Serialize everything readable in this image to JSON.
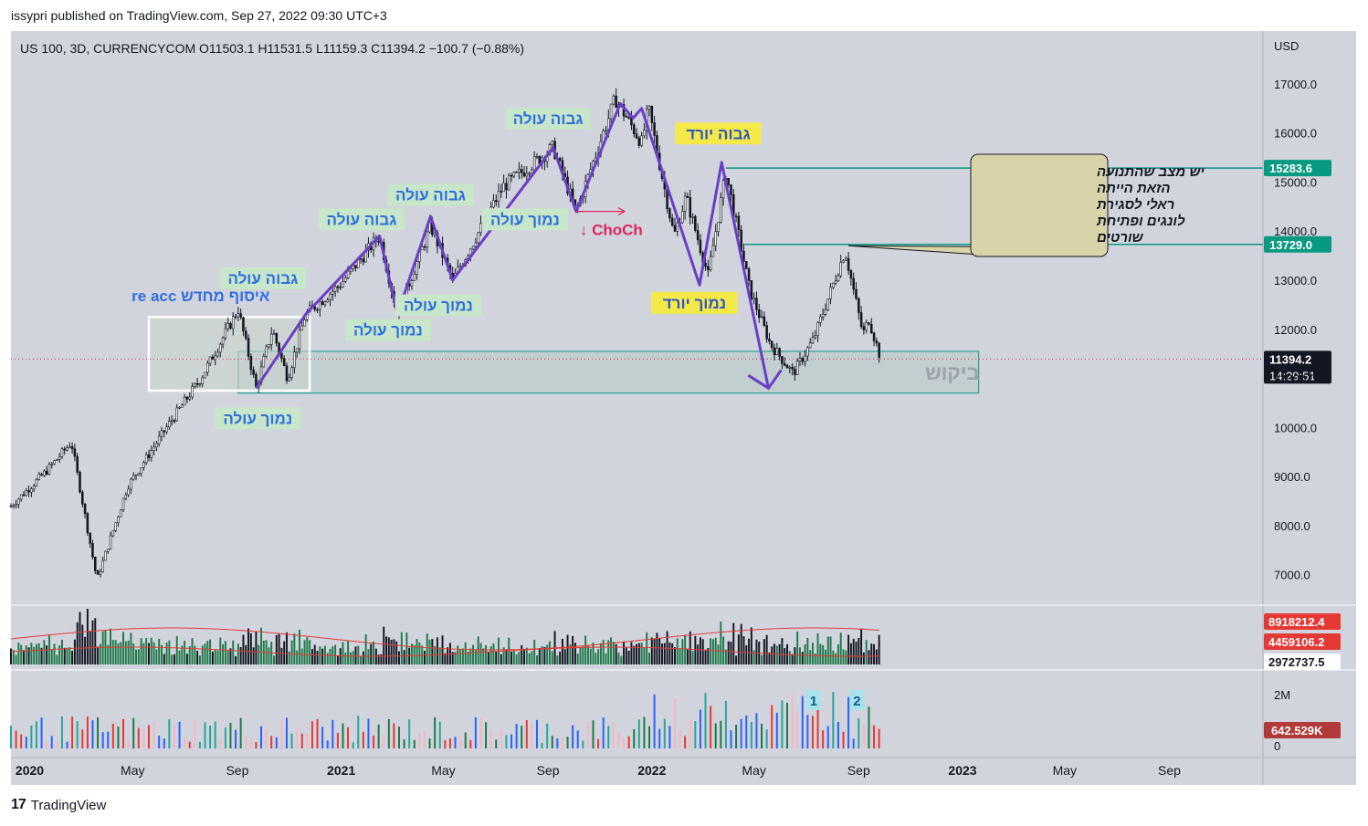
{
  "publisher": "issypri published on TradingView.com, Sep 27, 2022 09:30 UTC+3",
  "footer": {
    "logo": "17",
    "brand": "TradingView"
  },
  "colors": {
    "background": "#d1d4dc",
    "up": "#26a69a",
    "down": "#131722",
    "pattern": "#6a3fc4",
    "horizontal_level": "#089981",
    "choch": "#e0245e",
    "label_green_bg": "#c8e6c9",
    "label_yellow_bg": "#f5e94a",
    "demand_zone": "#b7c9c4"
  },
  "chart_data": [
    {
      "type": "candlestick",
      "title": "US 100, 3D, CURRENCYCOM",
      "ohlc": {
        "O": "O11503.1",
        "H": "H11531.5",
        "L": "L11159.3",
        "C": "C11394.2",
        "change": "−100.7 (−0.88%)"
      },
      "currency": "USD",
      "ylim": [
        6400,
        18000
      ],
      "y_ticks": [
        "17000.0",
        "16000.0",
        "15000.0",
        "14000.0",
        "13000.0",
        "12000.0",
        "11000.0",
        "10000.0",
        "9000.0",
        "8000.0",
        "7000.0"
      ],
      "x_ticks": [
        "2020",
        "May",
        "Sep",
        "2021",
        "May",
        "Sep",
        "2022",
        "May",
        "Sep",
        "2023",
        "May",
        "Sep"
      ],
      "xlim": [
        "2019-12-10",
        "2023-12-20"
      ],
      "swing_path": [
        {
          "date": "2019-12-10",
          "close": 8400
        },
        {
          "date": "2020-01-20",
          "close": 9100
        },
        {
          "date": "2020-02-19",
          "close": 9700
        },
        {
          "date": "2020-03-20",
          "close": 6900
        },
        {
          "date": "2020-04-25",
          "close": 8800
        },
        {
          "date": "2020-06-10",
          "close": 10000
        },
        {
          "date": "2020-07-20",
          "close": 11000
        },
        {
          "date": "2020-09-02",
          "close": 12400
        },
        {
          "date": "2020-09-23",
          "close": 10800
        },
        {
          "date": "2020-10-12",
          "close": 12000
        },
        {
          "date": "2020-10-30",
          "close": 11000
        },
        {
          "date": "2020-11-20",
          "close": 12300
        },
        {
          "date": "2020-12-30",
          "close": 12900
        },
        {
          "date": "2021-02-15",
          "close": 13900
        },
        {
          "date": "2021-03-08",
          "close": 12300
        },
        {
          "date": "2021-04-16",
          "close": 14100
        },
        {
          "date": "2021-05-12",
          "close": 13000
        },
        {
          "date": "2021-07-10",
          "close": 14900
        },
        {
          "date": "2021-09-07",
          "close": 15700
        },
        {
          "date": "2021-10-04",
          "close": 14400
        },
        {
          "date": "2021-11-19",
          "close": 16700
        },
        {
          "date": "2021-12-20",
          "close": 15800
        },
        {
          "date": "2021-12-28",
          "close": 16500
        },
        {
          "date": "2022-01-27",
          "close": 13900
        },
        {
          "date": "2022-02-10",
          "close": 14700
        },
        {
          "date": "2022-03-08",
          "close": 13100
        },
        {
          "date": "2022-03-29",
          "close": 15200
        },
        {
          "date": "2022-04-26",
          "close": 12800
        },
        {
          "date": "2022-05-20",
          "close": 11700
        },
        {
          "date": "2022-06-16",
          "close": 11100
        },
        {
          "date": "2022-07-10",
          "close": 11800
        },
        {
          "date": "2022-08-16",
          "close": 13600
        },
        {
          "date": "2022-09-06",
          "close": 11900
        },
        {
          "date": "2022-09-13",
          "close": 12200
        },
        {
          "date": "2022-09-27",
          "close": 11394
        }
      ],
      "price_badges": [
        {
          "value": "15283.6",
          "y": 15283.6
        },
        {
          "value": "13729.0",
          "y": 13729.0
        },
        {
          "value": "11394.2",
          "sub": "14:29:51",
          "y": 11394.2
        }
      ],
      "levels": [
        {
          "y": 15283.6,
          "from": "2022-03-29"
        },
        {
          "y": 13729.0,
          "from": "2022-04-20"
        }
      ],
      "choch": {
        "label": "↓ ChoCh",
        "y": 14400,
        "from": "2021-10-04",
        "to": "2021-11-30"
      },
      "annotations": [
        {
          "text": "גבוה עולה",
          "date": "2020-10-01",
          "y": 13000,
          "style": "green"
        },
        {
          "text": "איסוף מחדש re acc",
          "date": "2020-07-20",
          "y": 12650,
          "style": "plain"
        },
        {
          "text": "נמוך עולה",
          "date": "2020-09-25",
          "y": 10150,
          "style": "green"
        },
        {
          "text": "גבוה עולה",
          "date": "2021-01-25",
          "y": 14200,
          "style": "green"
        },
        {
          "text": "נמוך עולה",
          "date": "2021-02-25",
          "y": 11950,
          "style": "green"
        },
        {
          "text": "גבוה עולה",
          "date": "2021-04-16",
          "y": 14700,
          "style": "green"
        },
        {
          "text": "נמוך עולה",
          "date": "2021-04-25",
          "y": 12450,
          "style": "green"
        },
        {
          "text": "נמוך עולה",
          "date": "2021-08-05",
          "y": 14200,
          "style": "green"
        },
        {
          "text": "גבוה עולה",
          "date": "2021-09-01",
          "y": 16250,
          "style": "green"
        },
        {
          "text": "גבוה יורד",
          "date": "2022-03-20",
          "y": 15950,
          "style": "yellow"
        },
        {
          "text": "נמוך יורד",
          "date": "2022-02-20",
          "y": 12500,
          "style": "yellow"
        },
        {
          "text": "ביקוש",
          "date": "2022-12-20",
          "y": 11100,
          "style": "zone"
        }
      ],
      "note_box": {
        "lines": [
          "יש מצב שהתנועה",
          "הזאת הייתה",
          "ראלי לסגירת",
          "לונגים ופתיחת",
          "שורטים"
        ]
      },
      "demand_zone": {
        "from": "2020-09-02",
        "to": "2023-01-20",
        "y_low": 10700,
        "y_high": 11550
      },
      "accumulation_box": {
        "from": "2020-05-20",
        "to": "2020-11-25",
        "y_low": 10750,
        "y_high": 12250
      }
    },
    {
      "type": "bar",
      "title": "volume",
      "badges": [
        "8918212.4",
        "4459106.2",
        "2972737.5"
      ]
    },
    {
      "type": "bar",
      "title": "histogram",
      "y_ticks": [
        "2M",
        "0"
      ],
      "badge": "642.529K",
      "markers": [
        "1",
        "2"
      ]
    }
  ]
}
